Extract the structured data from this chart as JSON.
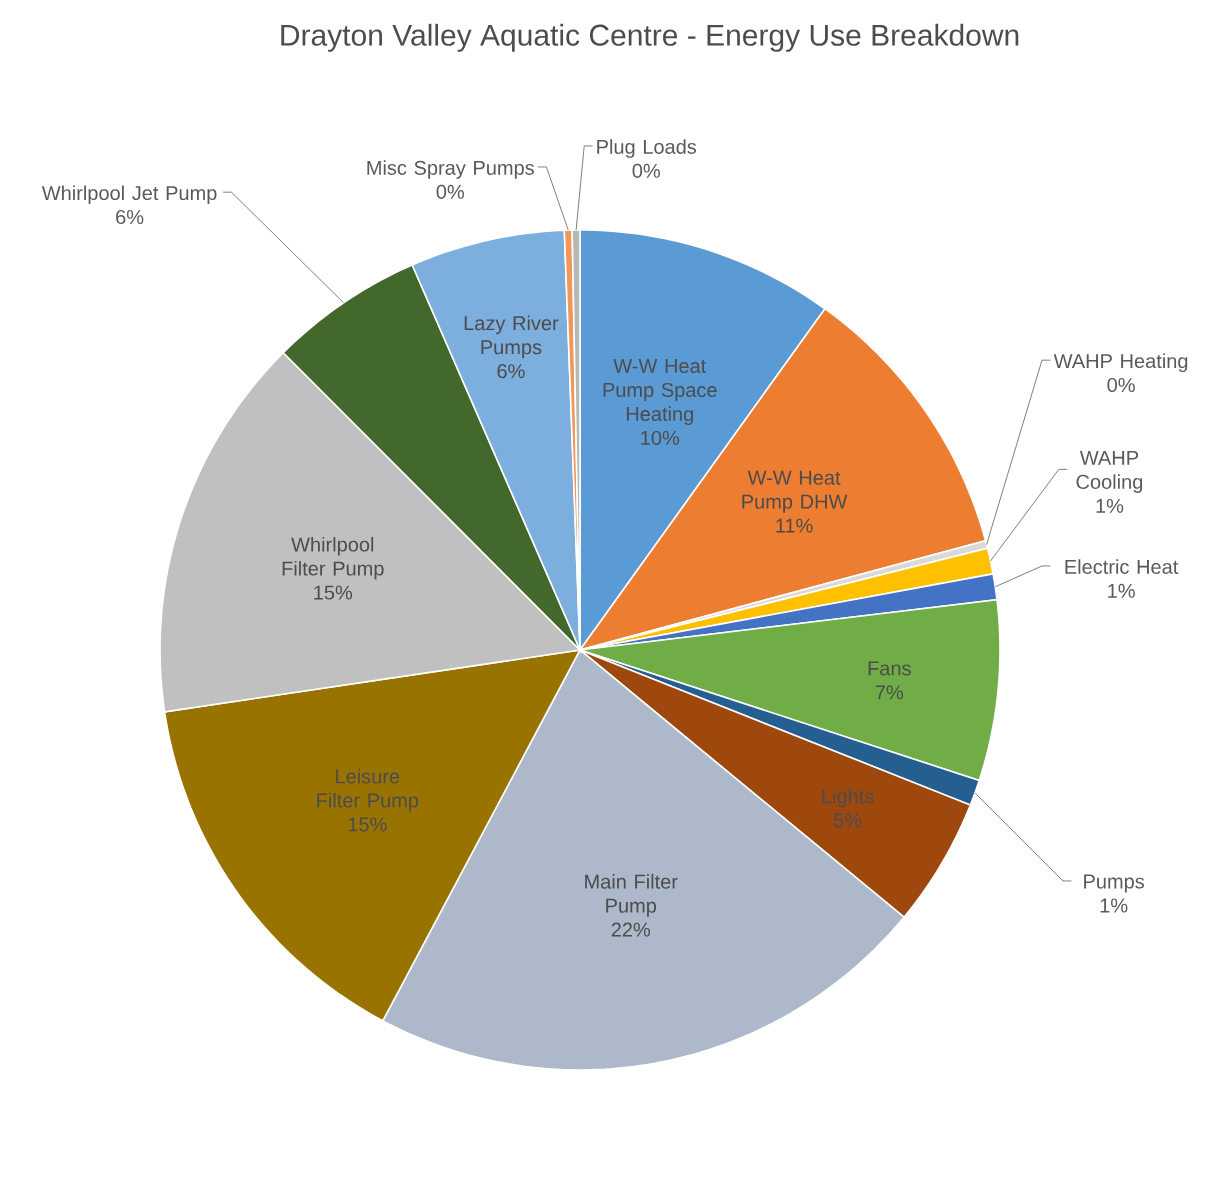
{
  "chart_data": {
    "type": "pie",
    "title": "Drayton Valley Aquatic Centre - Energy Use Breakdown",
    "categories": [
      "W-W Heat Pump Space Heating",
      "W-W Heat Pump DHW",
      "WAHP Heating",
      "WAHP Cooling",
      "Electric Heat",
      "Fans",
      "Pumps",
      "Lights",
      "Main Filter Pump",
      "Leisure Filter Pump",
      "Whirlpool Filter Pump",
      "Whirlpool Jet Pump",
      "Lazy River Pumps",
      "Misc Spray Pumps",
      "Plug Loads"
    ],
    "values": [
      10,
      11,
      0.3,
      1,
      1,
      7,
      1,
      5,
      22,
      15,
      15,
      6,
      6,
      0.3,
      0.3
    ],
    "value_labels": [
      "10%",
      "11%",
      "0%",
      "1%",
      "1%",
      "7%",
      "1%",
      "5%",
      "22%",
      "15%",
      "15%",
      "6%",
      "6%",
      "0%",
      "0%"
    ],
    "colors": [
      "#5b9bd5",
      "#ed7d31",
      "#d9d9d9",
      "#ffc000",
      "#4472c4",
      "#70ad47",
      "#255e91",
      "#9e480e",
      "#adb9ca",
      "#997300",
      "#c0c0c0",
      "#43682b",
      "#7cafdd",
      "#f1975a",
      "#b7b7b7"
    ]
  }
}
